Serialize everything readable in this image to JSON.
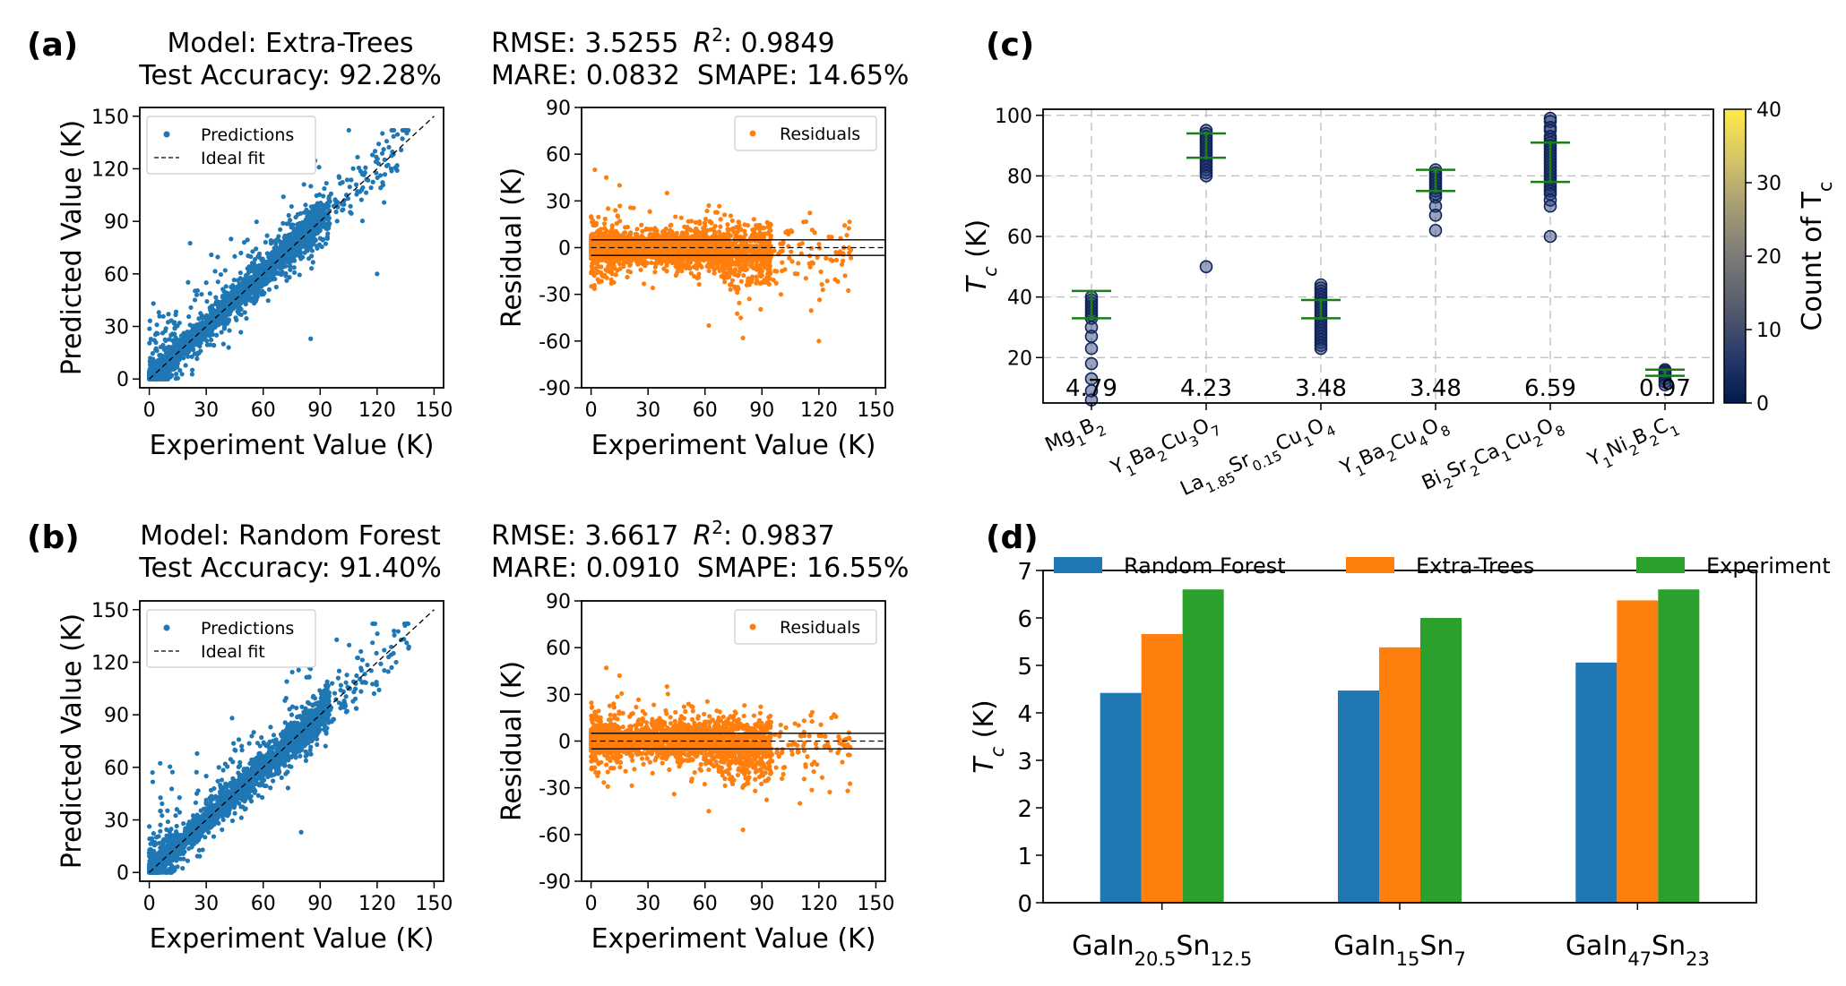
{
  "panels": {
    "a": {
      "label": "(a)",
      "model_line": "Model: Extra-Trees",
      "accuracy_line": "Test Accuracy: 92.28%",
      "rmse": "RMSE: 3.5255",
      "r2_prefix": "R",
      "r2_sup": "2",
      "r2_value": ": 0.9849",
      "mare_smape": "MARE: 0.0832  SMAPE: 14.65%"
    },
    "b": {
      "label": "(b)",
      "model_line": "Model: Random Forest",
      "accuracy_line": "Test Accuracy: 91.40%",
      "rmse": "RMSE: 3.6617",
      "r2_prefix": "R",
      "r2_sup": "2",
      "r2_value": ": 0.9837",
      "mare_smape": "MARE: 0.0910  SMAPE: 16.55%"
    },
    "c": {
      "label": "(c)"
    },
    "d": {
      "label": "(d)"
    }
  },
  "colors": {
    "blue": "#1f77b4",
    "orange": "#ff7f0e",
    "green": "#2ca02c",
    "range_green": "#1a7f1a"
  },
  "chart_data": [
    {
      "id": "a-scatter",
      "type": "scatter",
      "xlabel": "Experiment Value (K)",
      "ylabel": "Predicted Value (K)",
      "xlim": [
        -5,
        155
      ],
      "ylim": [
        -5,
        155
      ],
      "xticks": [
        0,
        30,
        60,
        90,
        120,
        150
      ],
      "yticks": [
        0,
        30,
        60,
        90,
        120,
        150
      ],
      "legend": [
        "Predictions",
        "Ideal fit"
      ],
      "legend_position": "top-left",
      "outliers": [
        [
          120,
          60
        ],
        [
          85,
          23
        ],
        [
          25,
          48
        ],
        [
          40,
          62
        ],
        [
          45,
          70
        ],
        [
          30,
          55
        ],
        [
          130,
          120
        ],
        [
          100,
          115
        ],
        [
          75,
          88
        ],
        [
          50,
          78
        ]
      ],
      "notes": "dense cloud of test predictions clustered along the ideal-fit diagonal"
    },
    {
      "id": "a-residual",
      "type": "scatter",
      "xlabel": "Experiment Value (K)",
      "ylabel": "Residual (K)",
      "xlim": [
        -5,
        155
      ],
      "ylim": [
        -90,
        90
      ],
      "xticks": [
        0,
        30,
        60,
        90,
        120,
        150
      ],
      "yticks": [
        -90,
        -60,
        -30,
        0,
        30,
        60,
        90
      ],
      "legend": [
        "Residuals"
      ],
      "legend_position": "top-right",
      "band_lines": [
        5,
        0,
        -5
      ],
      "outliers": [
        [
          2,
          50
        ],
        [
          8,
          45
        ],
        [
          120,
          -60
        ],
        [
          80,
          -58
        ],
        [
          62,
          -50
        ],
        [
          100,
          -30
        ],
        [
          15,
          40
        ],
        [
          40,
          35
        ]
      ]
    },
    {
      "id": "b-scatter",
      "type": "scatter",
      "xlabel": "Experiment Value (K)",
      "ylabel": "Predicted Value (K)",
      "xlim": [
        -5,
        155
      ],
      "ylim": [
        -5,
        155
      ],
      "xticks": [
        0,
        30,
        60,
        90,
        120,
        150
      ],
      "yticks": [
        0,
        30,
        60,
        90,
        120,
        150
      ],
      "legend": [
        "Predictions",
        "Ideal fit"
      ],
      "legend_position": "top-left",
      "outliers": [
        [
          80,
          23
        ],
        [
          40,
          62
        ],
        [
          25,
          45
        ],
        [
          45,
          70
        ],
        [
          30,
          55
        ],
        [
          130,
          120
        ],
        [
          100,
          115
        ],
        [
          75,
          90
        ],
        [
          55,
          80
        ]
      ]
    },
    {
      "id": "b-residual",
      "type": "scatter",
      "xlabel": "Experiment Value (K)",
      "ylabel": "Residual (K)",
      "xlim": [
        -5,
        155
      ],
      "ylim": [
        -90,
        90
      ],
      "xticks": [
        0,
        30,
        60,
        90,
        120,
        150
      ],
      "yticks": [
        -90,
        -60,
        -30,
        0,
        30,
        60,
        90
      ],
      "legend": [
        "Residuals"
      ],
      "legend_position": "top-right",
      "band_lines": [
        5,
        0,
        -5
      ],
      "outliers": [
        [
          80,
          -57
        ],
        [
          8,
          47
        ],
        [
          15,
          42
        ],
        [
          62,
          -45
        ],
        [
          110,
          -40
        ],
        [
          40,
          35
        ]
      ]
    },
    {
      "id": "c-distribution",
      "type": "scatter",
      "ylabel_main": "T",
      "ylabel_sub": "c",
      "ylabel_unit": " (K)",
      "ylim": [
        5,
        102
      ],
      "yticks": [
        20,
        40,
        60,
        80,
        100
      ],
      "grid": true,
      "categories": [
        {
          "parts": [
            [
              "Mg",
              ""
            ],
            [
              "1",
              "sub"
            ],
            [
              "B",
              ""
            ],
            [
              "2",
              "sub"
            ]
          ],
          "value_label": "4.79",
          "points": [
            36,
            37,
            38,
            39,
            35,
            34,
            33,
            30,
            27,
            23,
            18,
            13,
            9,
            6,
            40
          ],
          "lower": 33,
          "upper": 42
        },
        {
          "parts": [
            [
              "Y",
              ""
            ],
            [
              "1",
              "sub"
            ],
            [
              "Ba",
              ""
            ],
            [
              "2",
              "sub"
            ],
            [
              "Cu",
              ""
            ],
            [
              "3",
              "sub"
            ],
            [
              "O",
              ""
            ],
            [
              "7",
              "sub"
            ]
          ],
          "value_label": "4.23",
          "points": [
            95,
            94,
            93,
            92,
            91,
            90,
            89,
            88,
            87,
            86,
            85,
            84,
            83,
            82,
            81,
            80,
            50
          ],
          "lower": 86,
          "upper": 94
        },
        {
          "parts": [
            [
              "La",
              ""
            ],
            [
              "1.85",
              "sub"
            ],
            [
              "Sr",
              ""
            ],
            [
              "0.15",
              "sub"
            ],
            [
              "Cu",
              ""
            ],
            [
              "1",
              "sub"
            ],
            [
              "O",
              ""
            ],
            [
              "4",
              "sub"
            ]
          ],
          "value_label": "3.48",
          "points": [
            44,
            43,
            42,
            41,
            40,
            39,
            38,
            37,
            36,
            35,
            34,
            33,
            32,
            31,
            30,
            29,
            28,
            27,
            26,
            25,
            24,
            23
          ],
          "lower": 33,
          "upper": 39
        },
        {
          "parts": [
            [
              "Y",
              ""
            ],
            [
              "1",
              "sub"
            ],
            [
              "Ba",
              ""
            ],
            [
              "2",
              "sub"
            ],
            [
              "Cu",
              ""
            ],
            [
              "4",
              "sub"
            ],
            [
              "O",
              ""
            ],
            [
              "8",
              "sub"
            ]
          ],
          "value_label": "3.48",
          "points": [
            82,
            81,
            80,
            79,
            78,
            77,
            76,
            75,
            74,
            73,
            70,
            67,
            62
          ],
          "lower": 75,
          "upper": 82
        },
        {
          "parts": [
            [
              "Bi",
              ""
            ],
            [
              "2",
              "sub"
            ],
            [
              "Sr",
              ""
            ],
            [
              "2",
              "sub"
            ],
            [
              "Ca",
              ""
            ],
            [
              "1",
              "sub"
            ],
            [
              "Cu",
              ""
            ],
            [
              "2",
              "sub"
            ],
            [
              "O",
              ""
            ],
            [
              "8",
              "sub"
            ]
          ],
          "value_label": "6.59",
          "points": [
            99,
            98,
            96,
            95,
            93,
            92,
            91,
            90,
            89,
            88,
            87,
            86,
            85,
            84,
            83,
            82,
            81,
            80,
            79,
            78,
            77,
            76,
            75,
            74,
            72,
            70,
            60
          ],
          "lower": 78,
          "upper": 91
        },
        {
          "parts": [
            [
              "Y",
              ""
            ],
            [
              "1",
              "sub"
            ],
            [
              "Ni",
              ""
            ],
            [
              "2",
              "sub"
            ],
            [
              "B",
              ""
            ],
            [
              "2",
              "sub"
            ],
            [
              "C",
              ""
            ],
            [
              "1",
              "sub"
            ]
          ],
          "value_label": "0.97",
          "points": [
            16,
            15.5,
            15,
            14.5,
            14,
            13,
            12,
            11
          ],
          "lower": 14,
          "upper": 16
        }
      ],
      "colorbar": {
        "label_main": "Count of T",
        "label_sub": "c",
        "min": 0,
        "max": 40,
        "ticks": [
          0,
          10,
          20,
          30,
          40
        ],
        "colors": [
          "#001a4d",
          "#2a3a6b",
          "#575d6d",
          "#7c7b78",
          "#a59c74",
          "#d6c668",
          "#ffe945"
        ]
      }
    },
    {
      "id": "d-bars",
      "type": "bar",
      "ylabel_main": "T",
      "ylabel_sub": "c",
      "ylabel_unit": " (K)",
      "ylim": [
        0,
        7
      ],
      "yticks": [
        0,
        1,
        2,
        3,
        4,
        5,
        6,
        7
      ],
      "categories": [
        {
          "parts": [
            [
              "GaIn",
              ""
            ],
            [
              "20.5",
              "sub"
            ],
            [
              "Sn",
              ""
            ],
            [
              "12.5",
              "sub"
            ]
          ]
        },
        {
          "parts": [
            [
              "GaIn",
              ""
            ],
            [
              "15",
              "sub"
            ],
            [
              "Sn",
              ""
            ],
            [
              "7",
              "sub"
            ]
          ]
        },
        {
          "parts": [
            [
              "GaIn",
              ""
            ],
            [
              "47",
              "sub"
            ],
            [
              "Sn",
              ""
            ],
            [
              "23",
              "sub"
            ]
          ]
        }
      ],
      "series": [
        {
          "name": "Random Forest",
          "color": "#1f77b4",
          "values": [
            4.42,
            4.47,
            5.06
          ]
        },
        {
          "name": "Extra-Trees",
          "color": "#ff7f0e",
          "values": [
            5.66,
            5.38,
            6.37
          ]
        },
        {
          "name": "Experiment",
          "color": "#2ca02c",
          "values": [
            6.6,
            6.0,
            6.6
          ]
        }
      ],
      "legend_position": "top"
    }
  ]
}
